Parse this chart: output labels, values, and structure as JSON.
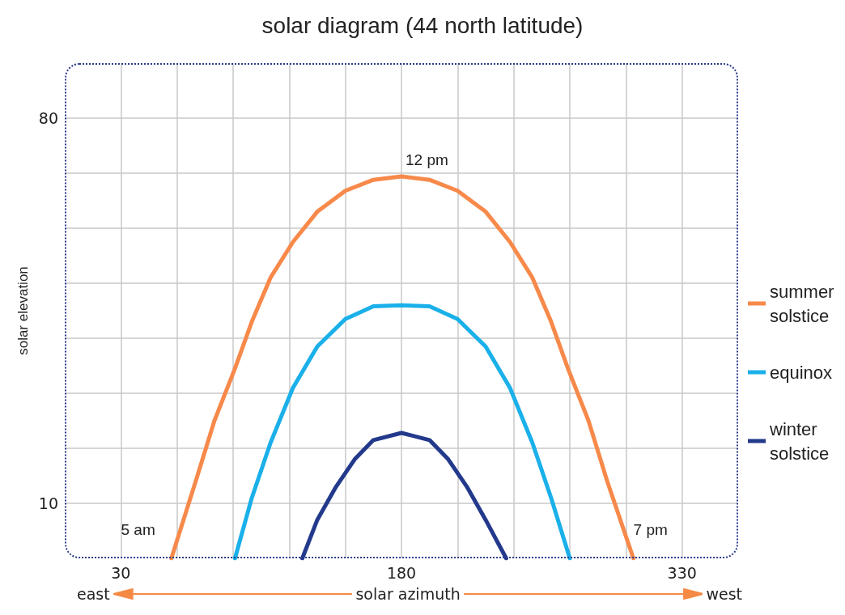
{
  "chart_data": {
    "type": "line",
    "title": "solar diagram (44 north latitude)",
    "xlabel": "solar azimuth",
    "ylabel": "solar elevation",
    "xlim": [
      0,
      360
    ],
    "ylim": [
      0,
      90
    ],
    "xticks": [
      30,
      {
        "value": 60,
        "label": null
      },
      {
        "value": 90,
        "label": null
      },
      {
        "value": 120,
        "label": null
      },
      {
        "value": 150,
        "label": null
      },
      180,
      {
        "value": 210,
        "label": null
      },
      {
        "value": 240,
        "label": null
      },
      {
        "value": 270,
        "label": null
      },
      {
        "value": 300,
        "label": null
      },
      330
    ],
    "yticks": [
      10,
      {
        "value": 20,
        "label": null
      },
      {
        "value": 30,
        "label": null
      },
      {
        "value": 40,
        "label": null
      },
      {
        "value": 50,
        "label": null
      },
      {
        "value": 60,
        "label": null
      },
      {
        "value": 70,
        "label": null
      },
      80
    ],
    "grid": true,
    "legend": "right",
    "marker": "none",
    "line_style": "solid",
    "series": [
      {
        "name": "summer solstice",
        "color": "#f7894a",
        "x": [
          57,
          70,
          80,
          91,
          100,
          110,
          122,
          135,
          150,
          165,
          180,
          195,
          210,
          225,
          238,
          250,
          260,
          269,
          280,
          290,
          304
        ],
        "values": [
          0,
          14,
          25,
          34.5,
          43,
          51,
          57.5,
          63,
          66.8,
          68.8,
          69.4,
          68.8,
          66.8,
          63,
          57.5,
          51,
          43,
          34.5,
          25,
          14,
          0
        ]
      },
      {
        "name": "equinox",
        "color": "#1ab0ea",
        "x": [
          91,
          100,
          110,
          122,
          135,
          150,
          165,
          180,
          195,
          210,
          225,
          238,
          250,
          260,
          270
        ],
        "values": [
          0,
          11,
          21,
          31,
          38.5,
          43.5,
          45.8,
          46,
          45.8,
          43.5,
          38.5,
          31,
          21,
          11,
          0
        ]
      },
      {
        "name": "winter solstice",
        "color": "#233a8c",
        "x": [
          127,
          135,
          145,
          155,
          165,
          180,
          195,
          205,
          215,
          225,
          236
        ],
        "values": [
          0,
          7,
          13,
          18,
          21.5,
          22.8,
          21.5,
          18,
          13,
          7,
          0
        ]
      }
    ],
    "annotations": [
      {
        "text": "5 am",
        "x": 57,
        "y": 0
      },
      {
        "text": "12 pm",
        "x": 180,
        "y": 69.4
      },
      {
        "text": "7 pm",
        "x": 304,
        "y": 0
      },
      "east",
      "west"
    ]
  }
}
